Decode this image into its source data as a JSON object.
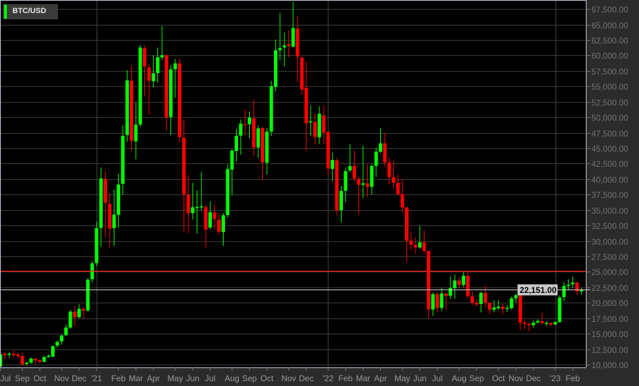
{
  "symbol": "BTC/USD",
  "colors": {
    "up": "#00ff00",
    "down": "#ff0000",
    "level_line": "#ff1a1a",
    "last_price_line": "#d8d8d8",
    "plot_bg": "#000000",
    "axis_bg": "#2b2b2b",
    "grid": "#3a3a3a"
  },
  "chart_data": {
    "type": "candlestick",
    "title": "",
    "ylim": [
      10000,
      67500
    ],
    "yticks": [
      10000,
      12500,
      15000,
      17500,
      20000,
      22500,
      25000,
      27500,
      30000,
      32500,
      35000,
      37500,
      40000,
      42500,
      45000,
      47500,
      50000,
      52500,
      55000,
      57500,
      60000,
      62500,
      65000,
      67500
    ],
    "grid": true,
    "last_price": 22151,
    "last_price_label": "22,151.00",
    "horizontal_level": 25200,
    "xticks": [
      {
        "label": "Jul",
        "date": "2020-07-26"
      },
      {
        "label": "Sep",
        "date": "2020-08-30"
      },
      {
        "label": "Oct",
        "date": "2020-09-27"
      },
      {
        "label": "Nov",
        "date": "2020-11-01"
      },
      {
        "label": "Dec",
        "date": "2020-11-29"
      },
      {
        "label": "'21",
        "date": "2020-12-27",
        "year": true
      },
      {
        "label": "Feb",
        "date": "2021-01-31"
      },
      {
        "label": "Mar",
        "date": "2021-02-28"
      },
      {
        "label": "Apr",
        "date": "2021-03-28"
      },
      {
        "label": "May",
        "date": "2021-05-02"
      },
      {
        "label": "Jun",
        "date": "2021-05-30"
      },
      {
        "label": "Jul",
        "date": "2021-06-27"
      },
      {
        "label": "Aug",
        "date": "2021-08-01"
      },
      {
        "label": "Sep",
        "date": "2021-08-29"
      },
      {
        "label": "Oct",
        "date": "2021-09-26"
      },
      {
        "label": "Nov",
        "date": "2021-10-31"
      },
      {
        "label": "Dec",
        "date": "2021-11-28"
      },
      {
        "label": "'22",
        "date": "2022-01-02",
        "year": true
      },
      {
        "label": "Feb",
        "date": "2022-01-30"
      },
      {
        "label": "Mar",
        "date": "2022-02-27"
      },
      {
        "label": "Apr",
        "date": "2022-03-27"
      },
      {
        "label": "May",
        "date": "2022-05-01"
      },
      {
        "label": "Jun",
        "date": "2022-05-29"
      },
      {
        "label": "Jul",
        "date": "2022-06-26"
      },
      {
        "label": "Aug",
        "date": "2022-07-31"
      },
      {
        "label": "Sep",
        "date": "2022-08-28"
      },
      {
        "label": "Oct",
        "date": "2022-10-02"
      },
      {
        "label": "Nov",
        "date": "2022-10-30"
      },
      {
        "label": "Dec",
        "date": "2022-11-27"
      },
      {
        "label": "'23",
        "date": "2023-01-01",
        "year": true
      },
      {
        "label": "Feb",
        "date": "2023-01-29"
      }
    ],
    "candles_fields": [
      "date",
      "open",
      "high",
      "low",
      "close"
    ],
    "candles": [
      [
        "2020-07-26",
        9700,
        11800,
        9600,
        11640
      ],
      [
        "2020-08-02",
        11750,
        11970,
        10860,
        11530
      ],
      [
        "2020-08-09",
        11700,
        12000,
        11110,
        11780
      ],
      [
        "2020-08-16",
        11750,
        12260,
        11300,
        11530
      ],
      [
        "2020-08-23",
        11640,
        11890,
        11080,
        11370
      ],
      [
        "2020-08-30",
        11370,
        11970,
        9810,
        10030
      ],
      [
        "2020-09-06",
        10110,
        10400,
        9890,
        10330
      ],
      [
        "2020-09-13",
        10330,
        11110,
        10150,
        11000
      ],
      [
        "2020-09-20",
        10960,
        11000,
        10030,
        10670
      ],
      [
        "2020-09-27",
        10700,
        10860,
        10260,
        10450
      ],
      [
        "2020-10-04",
        10450,
        11450,
        10370,
        11230
      ],
      [
        "2020-10-11",
        11230,
        11670,
        11110,
        11410
      ],
      [
        "2020-10-18",
        11300,
        13050,
        11250,
        13010
      ],
      [
        "2020-10-25",
        13090,
        13900,
        12750,
        13680
      ],
      [
        "2020-11-01",
        13760,
        14870,
        13230,
        14720
      ],
      [
        "2020-11-08",
        14760,
        16430,
        14650,
        15990
      ],
      [
        "2020-11-15",
        15990,
        18880,
        15760,
        18580
      ],
      [
        "2020-11-22",
        18580,
        19470,
        16210,
        17660
      ],
      [
        "2020-11-29",
        17690,
        19770,
        17430,
        19030
      ],
      [
        "2020-12-06",
        19030,
        19330,
        17500,
        18730
      ],
      [
        "2020-12-13",
        18730,
        23970,
        18600,
        23740
      ],
      [
        "2020-12-20",
        23820,
        26720,
        23260,
        26380
      ],
      [
        "2020-12-27",
        26420,
        33110,
        25920,
        32070
      ],
      [
        "2021-01-03",
        32100,
        41880,
        29060,
        40100
      ],
      [
        "2021-01-10",
        40020,
        41210,
        30620,
        36160
      ],
      [
        "2021-01-17",
        36010,
        37640,
        28950,
        32000
      ],
      [
        "2021-01-24",
        32070,
        38310,
        29170,
        34260
      ],
      [
        "2021-01-31",
        34220,
        40870,
        32180,
        39120
      ],
      [
        "2021-02-07",
        39240,
        48680,
        37420,
        47000
      ],
      [
        "2021-02-14",
        47150,
        57590,
        46040,
        55960
      ],
      [
        "2021-02-21",
        55890,
        58260,
        44550,
        46190
      ],
      [
        "2021-02-28",
        46110,
        52470,
        43220,
        48820
      ],
      [
        "2021-03-07",
        48820,
        61720,
        48500,
        61270
      ],
      [
        "2021-03-14",
        61160,
        61610,
        53360,
        58190
      ],
      [
        "2021-03-21",
        58040,
        58560,
        50500,
        55890
      ],
      [
        "2021-03-28",
        55810,
        60040,
        54810,
        57110
      ],
      [
        "2021-04-04",
        57150,
        61270,
        55590,
        59710
      ],
      [
        "2021-04-11",
        59680,
        64800,
        59230,
        60040
      ],
      [
        "2021-04-18",
        60040,
        60230,
        47790,
        49980
      ],
      [
        "2021-04-25",
        50050,
        58450,
        47150,
        57740
      ],
      [
        "2021-05-02",
        57780,
        59450,
        53170,
        58710
      ],
      [
        "2021-05-09",
        58710,
        59490,
        46000,
        46780
      ],
      [
        "2021-05-16",
        46700,
        49680,
        31510,
        37500
      ],
      [
        "2021-05-23",
        37450,
        40620,
        31260,
        34490
      ],
      [
        "2021-05-30",
        34520,
        39390,
        33480,
        35450
      ],
      [
        "2021-06-06",
        35400,
        38200,
        31150,
        35480
      ],
      [
        "2021-06-13",
        35450,
        41180,
        34860,
        35600
      ],
      [
        "2021-06-20",
        35490,
        35830,
        28840,
        31850
      ],
      [
        "2021-06-27",
        32180,
        36390,
        31900,
        34630
      ],
      [
        "2021-07-04",
        34600,
        35830,
        32000,
        33550
      ],
      [
        "2021-07-11",
        33440,
        34490,
        31030,
        31510
      ],
      [
        "2021-07-18",
        31430,
        34490,
        29200,
        34150
      ],
      [
        "2021-07-25",
        34190,
        42360,
        33780,
        41620
      ],
      [
        "2021-08-01",
        41540,
        44800,
        37380,
        44630
      ],
      [
        "2021-08-08",
        44550,
        48090,
        42850,
        47000
      ],
      [
        "2021-08-15",
        47040,
        49650,
        43960,
        48980
      ],
      [
        "2021-08-22",
        48900,
        51220,
        47150,
        48800
      ],
      [
        "2021-08-29",
        48870,
        50940,
        46560,
        49950
      ],
      [
        "2021-09-05",
        49830,
        52840,
        43700,
        45110
      ],
      [
        "2021-09-12",
        45110,
        48710,
        43400,
        48200
      ],
      [
        "2021-09-19",
        48270,
        48400,
        39790,
        42690
      ],
      [
        "2021-09-26",
        42650,
        48270,
        40730,
        47670
      ],
      [
        "2021-10-03",
        47670,
        55890,
        46970,
        55030
      ],
      [
        "2021-10-10",
        54920,
        62580,
        54220,
        60830
      ],
      [
        "2021-10-17",
        60860,
        66920,
        59300,
        61200
      ],
      [
        "2021-10-24",
        61310,
        63690,
        58190,
        61610
      ],
      [
        "2021-10-31",
        61830,
        64060,
        59680,
        61500
      ],
      [
        "2021-11-07",
        61420,
        68660,
        61270,
        64430
      ],
      [
        "2021-11-14",
        64350,
        66290,
        55660,
        59820
      ],
      [
        "2021-11-21",
        59640,
        59790,
        53620,
        54480
      ],
      [
        "2021-11-28",
        54770,
        59010,
        44630,
        49010
      ],
      [
        "2021-12-05",
        49200,
        51890,
        46970,
        49350
      ],
      [
        "2021-12-12",
        49230,
        50640,
        45560,
        46820
      ],
      [
        "2021-12-19",
        46750,
        51780,
        45670,
        50570
      ],
      [
        "2021-12-26",
        50310,
        51890,
        45670,
        47530
      ],
      [
        "2022-01-02",
        47670,
        47670,
        40620,
        41730
      ],
      [
        "2022-01-09",
        41650,
        44300,
        39680,
        43100
      ],
      [
        "2022-01-16",
        43030,
        43400,
        34220,
        34970
      ],
      [
        "2022-01-23",
        34970,
        38870,
        33040,
        38090
      ],
      [
        "2022-01-30",
        38120,
        41920,
        36270,
        41290
      ],
      [
        "2022-02-06",
        41400,
        45630,
        41100,
        42100
      ],
      [
        "2022-02-13",
        42130,
        44630,
        39610,
        40090
      ],
      [
        "2022-02-20",
        40060,
        40290,
        34300,
        39090
      ],
      [
        "2022-02-27",
        39090,
        45370,
        36930,
        39310
      ],
      [
        "2022-03-06",
        39310,
        42470,
        37160,
        38760
      ],
      [
        "2022-03-13",
        38760,
        42400,
        37500,
        42130
      ],
      [
        "2022-03-20",
        42130,
        45070,
        40350,
        44440
      ],
      [
        "2022-03-27",
        44440,
        48230,
        44180,
        45780
      ],
      [
        "2022-04-03",
        45780,
        47420,
        42020,
        42690
      ],
      [
        "2022-04-10",
        42690,
        43400,
        39130,
        40320
      ],
      [
        "2022-04-17",
        40320,
        42960,
        38500,
        39390
      ],
      [
        "2022-04-24",
        39390,
        40730,
        37300,
        37570
      ],
      [
        "2022-05-01",
        37570,
        39980,
        34670,
        35410
      ],
      [
        "2022-05-08",
        35410,
        35520,
        26690,
        30030
      ],
      [
        "2022-05-15",
        30030,
        31430,
        28540,
        29390
      ],
      [
        "2022-05-22",
        29390,
        30590,
        27910,
        28950
      ],
      [
        "2022-05-29",
        28950,
        32400,
        28760,
        29760
      ],
      [
        "2022-06-05",
        29760,
        31730,
        28020,
        28390
      ],
      [
        "2022-06-12",
        28390,
        28390,
        17500,
        18920
      ],
      [
        "2022-06-19",
        18920,
        21670,
        17880,
        21400
      ],
      [
        "2022-06-26",
        21400,
        21780,
        18550,
        19170
      ],
      [
        "2022-07-03",
        19170,
        22450,
        18620,
        21510
      ],
      [
        "2022-07-10",
        21510,
        21510,
        18880,
        21110
      ],
      [
        "2022-07-17",
        21150,
        24260,
        20590,
        22380
      ],
      [
        "2022-07-24",
        22380,
        24570,
        20670,
        23600
      ],
      [
        "2022-07-31",
        23600,
        24120,
        22340,
        22900
      ],
      [
        "2022-08-07",
        22900,
        24940,
        22520,
        24380
      ],
      [
        "2022-08-14",
        24380,
        25050,
        20670,
        21070
      ],
      [
        "2022-08-21",
        21070,
        21780,
        19660,
        20000
      ],
      [
        "2022-08-28",
        20000,
        20550,
        19440,
        19730
      ],
      [
        "2022-09-04",
        19810,
        21850,
        18440,
        21590
      ],
      [
        "2022-09-11",
        21590,
        22710,
        19170,
        20000
      ],
      [
        "2022-09-18",
        20030,
        20030,
        18100,
        18880
      ],
      [
        "2022-09-25",
        18880,
        20400,
        18440,
        19250
      ],
      [
        "2022-10-02",
        19140,
        20480,
        18880,
        19360
      ],
      [
        "2022-10-09",
        19360,
        19840,
        18140,
        18990
      ],
      [
        "2022-10-16",
        19060,
        19660,
        18500,
        19170
      ],
      [
        "2022-10-23",
        19140,
        21000,
        18920,
        20730
      ],
      [
        "2022-10-30",
        20730,
        21510,
        20000,
        21220
      ],
      [
        "2022-11-06",
        21220,
        21290,
        15540,
        16770
      ],
      [
        "2022-11-13",
        16770,
        17210,
        15720,
        16580
      ],
      [
        "2022-11-20",
        16580,
        16770,
        15380,
        16390
      ],
      [
        "2022-11-27",
        16390,
        17210,
        15940,
        16770
      ],
      [
        "2022-12-04",
        16830,
        17320,
        16610,
        17060
      ],
      [
        "2022-12-11",
        17020,
        18330,
        16500,
        16720
      ],
      [
        "2022-12-18",
        16610,
        17020,
        16210,
        16770
      ],
      [
        "2022-12-25",
        16720,
        16910,
        16320,
        16460
      ],
      [
        "2023-01-01",
        16500,
        16950,
        16390,
        16880
      ],
      [
        "2023-01-08",
        16880,
        21220,
        16770,
        20850
      ],
      [
        "2023-01-15",
        20920,
        23300,
        20290,
        22710
      ],
      [
        "2023-01-22",
        22740,
        23820,
        22150,
        22900
      ],
      [
        "2023-01-29",
        23010,
        24270,
        22410,
        23270
      ],
      [
        "2023-02-05",
        23270,
        23380,
        21290,
        21850
      ],
      [
        "2023-02-12",
        21850,
        22400,
        21290,
        22151
      ]
    ]
  }
}
